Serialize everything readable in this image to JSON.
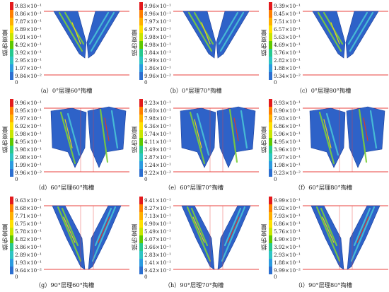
{
  "colors": [
    "#e31a1c",
    "#ff7f00",
    "#ffb000",
    "#ffe100",
    "#c8e600",
    "#5ec900",
    "#26c98f",
    "#2ec4c4",
    "#2b9be0",
    "#2c6fd0",
    "#1b3fa8"
  ],
  "panels": [
    {
      "id": "a",
      "caption": "（a）0°层理60°掏槽",
      "ylabel": "损伤变量",
      "zero": "0",
      "ticks": [
        "9.83×10⁻¹",
        "8.86×10⁻¹",
        "7.87×10⁻¹",
        "6.89×10⁻¹",
        "5.91×10⁻¹",
        "4.92×10⁻¹",
        "3.92×10⁻¹",
        "2.95×10⁻¹",
        "1.97×10⁻¹",
        "9.84×10⁻²"
      ]
    },
    {
      "id": "b",
      "caption": "（b）0°层理70°掏槽",
      "ylabel": "损伤变量",
      "zero": "0",
      "ticks": [
        "9.96×10⁻¹",
        "8.96×10⁻¹",
        "7.97×10⁻¹",
        "6.97×10⁻¹",
        "5.98×10⁻¹",
        "4.98×10⁻¹",
        "3.84×10⁻¹",
        "2.99×10⁻¹",
        "1.86×10⁻¹",
        "9.96×10⁻²"
      ]
    },
    {
      "id": "c",
      "caption": "（c）0°层理80°掏槽",
      "ylabel": "损伤变量",
      "zero": "0",
      "ticks": [
        "9.39×10⁻¹",
        "8.45×10⁻¹",
        "7.51×10⁻¹",
        "6.57×10⁻¹",
        "5.63×10⁻¹",
        "4.69×10⁻¹",
        "3.76×10⁻¹",
        "2.82×10⁻¹",
        "1.88×10⁻¹",
        "9.34×10⁻²"
      ]
    },
    {
      "id": "d",
      "caption": "（d）60°层理60°掏槽",
      "ylabel": "损伤变量",
      "zero": "0",
      "ticks": [
        "9.96×10⁻¹",
        "8.95×10⁻¹",
        "7.97×10⁻¹",
        "6.92×10⁻¹",
        "5.98×10⁻¹",
        "4.95×10⁻¹",
        "3.98×10⁻¹",
        "2.98×10⁻¹",
        "1.99×10⁻¹",
        "9.96×10⁻²"
      ]
    },
    {
      "id": "e",
      "caption": "（e）60°层理70°掏槽",
      "ylabel": "损伤变量",
      "zero": "0",
      "ticks": [
        "9.23×10⁻¹",
        "8.60×10⁻¹",
        "7.98×10⁻¹",
        "6.36×10⁻¹",
        "5.74×10⁻¹",
        "4.11×10⁻¹",
        "3.49×10⁻¹",
        "2.87×10⁻¹",
        "1.24×10⁻¹",
        "9.22×10⁻²"
      ]
    },
    {
      "id": "f",
      "caption": "（f）60°层理80°掏槽",
      "ylabel": "损伤变量",
      "zero": "0",
      "ticks": [
        "9.93×10⁻¹",
        "8.90×10⁻¹",
        "7.93×10⁻¹",
        "6.86×10⁻¹",
        "5.96×10⁻¹",
        "4.95×10⁻¹",
        "3.96×10⁻¹",
        "2.97×10⁻¹",
        "1.98×10⁻¹",
        "9.23×10⁻²"
      ]
    },
    {
      "id": "g",
      "caption": "（g）90°层理60°掏槽",
      "ylabel": "损伤变量",
      "zero": "0",
      "ticks": [
        "9.63×10⁻¹",
        "8.68×10⁻¹",
        "7.71×10⁻¹",
        "6.75×10⁻¹",
        "5.78×10⁻¹",
        "4.82×10⁻¹",
        "3.86×10⁻¹",
        "2.89×10⁻¹",
        "1.93×10⁻¹",
        "9.64×10⁻²"
      ]
    },
    {
      "id": "h",
      "caption": "（h）90°层理70°掏槽",
      "ylabel": "损伤变量",
      "zero": "0",
      "ticks": [
        "9.41×10⁻¹",
        "8.27×10⁻¹",
        "7.13×10⁻¹",
        "6.90×10⁻¹",
        "5.49×10⁻¹",
        "4.07×10⁻¹",
        "3.66×10⁻¹",
        "2.83×10⁻¹",
        "1.41×10⁻¹",
        "9.42×10⁻²"
      ]
    },
    {
      "id": "i",
      "caption": "（i）90°层理80°掏槽",
      "ylabel": "损伤变量",
      "zero": "0",
      "ticks": [
        "9.99×10⁻¹",
        "8.92×10⁻¹",
        "7.93×10⁻¹",
        "6.86×10⁻¹",
        "5.76×10⁻¹",
        "4.90×10⁻¹",
        "3.92×10⁻¹",
        "2.93×10⁻¹",
        "1.88×10⁻¹",
        "9.99×10⁻²"
      ]
    }
  ]
}
